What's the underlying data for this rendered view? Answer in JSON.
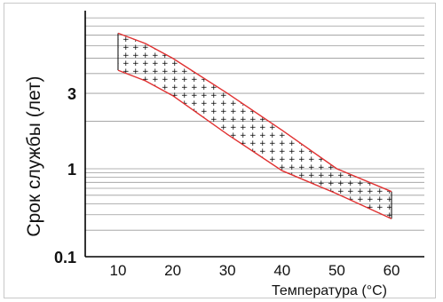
{
  "chart_data": {
    "type": "area",
    "title": "",
    "xlabel": "Температура (°С)",
    "ylabel": "Срок службы (лет)",
    "x": [
      10,
      20,
      30,
      40,
      50,
      60
    ],
    "xlim": [
      4,
      66
    ],
    "x_ticks": [
      "10",
      "20",
      "30",
      "40",
      "50",
      "60"
    ],
    "y_scale": "log",
    "ylim": [
      0.1,
      10
    ],
    "y_tick_labels": [
      {
        "value": 0.1,
        "label": "0.1"
      },
      {
        "value": 1,
        "label": "1"
      },
      {
        "value": 3,
        "label": "3"
      }
    ],
    "grid": {
      "horizontal": true,
      "vertical": false
    },
    "series": [
      {
        "role": "upper-bound",
        "color": "#e03030",
        "x": [
          10,
          15,
          20,
          30,
          40,
          50,
          60
        ],
        "values": [
          7.2,
          6.2,
          5.0,
          3.0,
          1.75,
          1.0,
          0.55
        ]
      },
      {
        "role": "lower-bound",
        "color": "#e03030",
        "x": [
          10,
          15,
          20,
          30,
          40,
          50,
          60
        ],
        "values": [
          4.2,
          3.6,
          2.9,
          1.65,
          0.95,
          0.52,
          0.27
        ]
      },
      {
        "role": "band-fill",
        "color": "#000000",
        "pattern": "dots",
        "between": [
          "upper-bound",
          "lower-bound"
        ]
      }
    ]
  }
}
